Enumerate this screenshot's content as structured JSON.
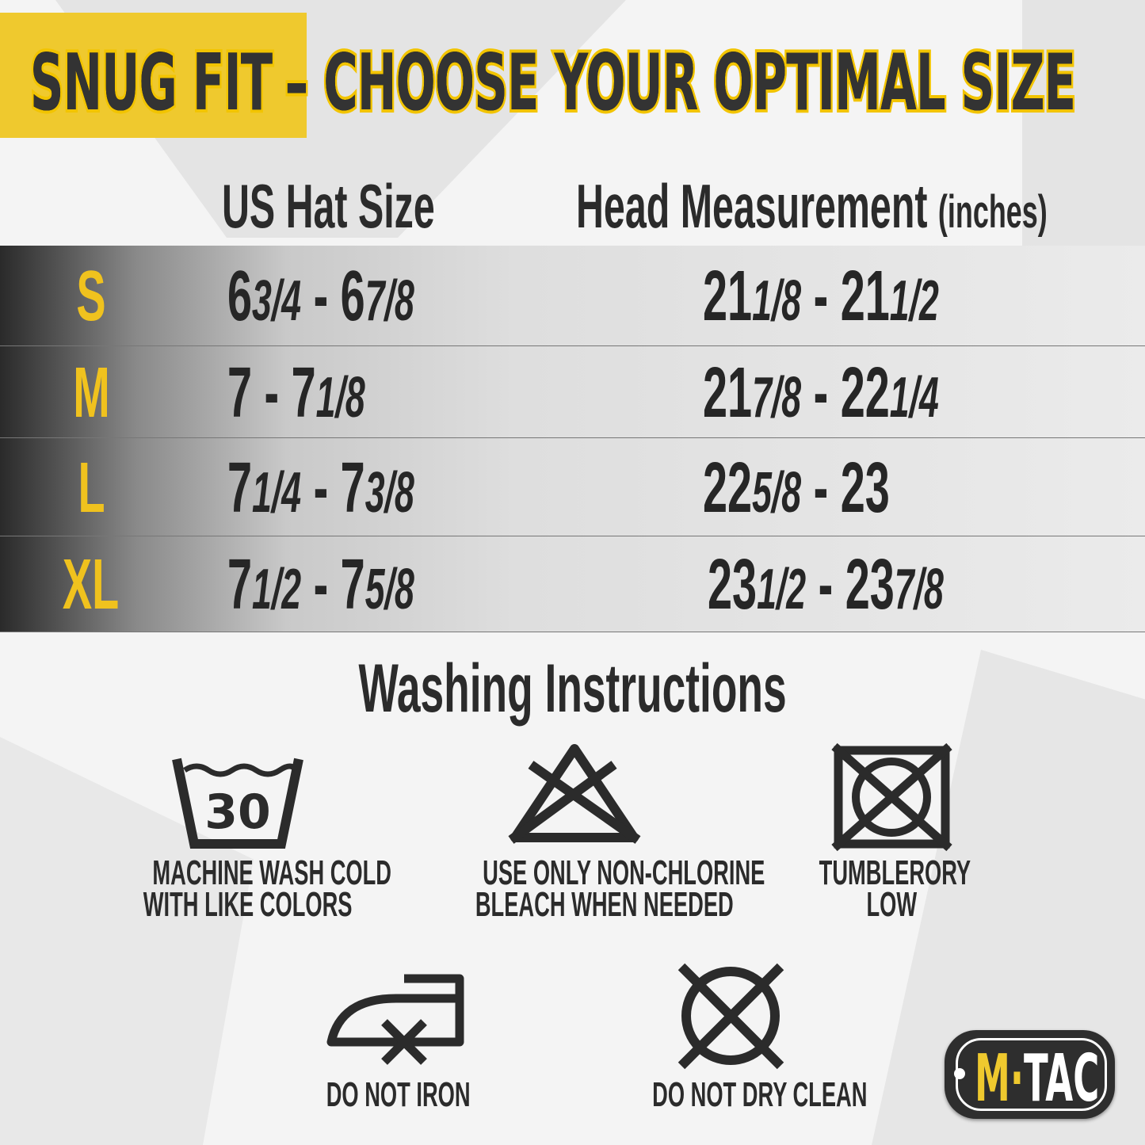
{
  "title": {
    "part1": "SNUG FIT",
    "part2": "– CHOOSE YOUR OPTIMAL SIZE"
  },
  "columns": {
    "hat": "US Hat Size",
    "head": "Head Measurement",
    "head_unit": "(inches)"
  },
  "rows": [
    {
      "size": "S",
      "hat": {
        "a": "6",
        "af": "3/4",
        "b": "6",
        "bf": "7/8"
      },
      "head": {
        "a": "21",
        "af": "1/8",
        "b": "21",
        "bf": "1/2"
      }
    },
    {
      "size": "M",
      "hat": {
        "a": "7",
        "af": "",
        "b": "7",
        "bf": "1/8"
      },
      "head": {
        "a": "21",
        "af": "7/8",
        "b": "22",
        "bf": "1/4"
      }
    },
    {
      "size": "L",
      "hat": {
        "a": "7",
        "af": "1/4",
        "b": "7",
        "bf": "3/8"
      },
      "head": {
        "a": "22",
        "af": "5/8",
        "b": "23",
        "bf": ""
      }
    },
    {
      "size": "XL",
      "hat": {
        "a": "7",
        "af": "1/2",
        "b": "7",
        "bf": "5/8"
      },
      "head": {
        "a": "23",
        "af": "1/2",
        "b": "23",
        "bf": "7/8"
      }
    }
  ],
  "washing": {
    "title": "Washing Instructions",
    "tub_number": "30",
    "items": [
      {
        "icon": "wash-tub-30-icon",
        "line1": "MACHINE WASH COLD",
        "line2": "WITH LIKE COLORS"
      },
      {
        "icon": "no-chlorine-bleach-icon",
        "line1": "USE ONLY NON-CHLORINE",
        "line2": "BLEACH WHEN NEEDED"
      },
      {
        "icon": "no-tumble-dry-icon",
        "line1": "TUMBLERORY",
        "line2": "LOW"
      },
      {
        "icon": "do-not-iron-icon",
        "line1": "DO NOT IRON"
      },
      {
        "icon": "do-not-dry-clean-icon",
        "line1": "DO NOT DRY CLEAN"
      }
    ]
  },
  "logo": {
    "m": "M",
    "rest": "TAC"
  },
  "colors": {
    "accent": "#efc92e",
    "text": "#2b2b2b"
  }
}
